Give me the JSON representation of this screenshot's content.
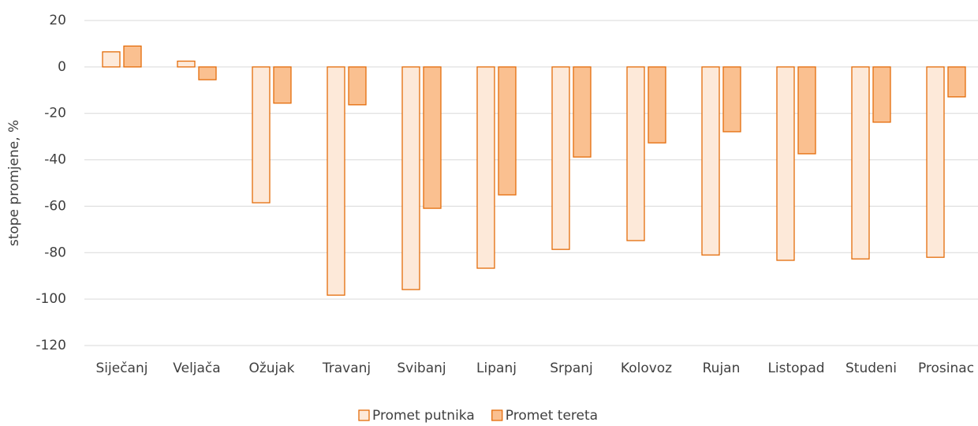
{
  "chart_data": {
    "type": "bar",
    "y_label": "stope promjene, %",
    "categories": [
      "Siječanj",
      "Veljača",
      "Ožujak",
      "Travanj",
      "Svibanj",
      "Lipanj",
      "Srpanj",
      "Kolovoz",
      "Rujan",
      "Listopad",
      "Studeni",
      "Prosinac"
    ],
    "series": [
      {
        "name": "Promet putnika",
        "color": "#fde9d9",
        "values": [
          6.5,
          2.5,
          -58.5,
          -98.3,
          -95.9,
          -86.7,
          -78.6,
          -74.8,
          -81,
          -83.3,
          -82.7,
          -82
        ]
      },
      {
        "name": "Promet tereta",
        "color": "#fac090",
        "values": [
          9,
          -5.5,
          -15.6,
          -16.3,
          -60.9,
          -55.1,
          -38.8,
          -32.7,
          -27.9,
          -37.4,
          -23.8,
          -12.9
        ]
      }
    ],
    "edge_color": "#e46c0a",
    "ylim": [
      -120,
      20
    ],
    "yticks": [
      -120,
      -100,
      -80,
      -60,
      -40,
      -20,
      0,
      20
    ],
    "grid": true,
    "legend": "bottom"
  }
}
